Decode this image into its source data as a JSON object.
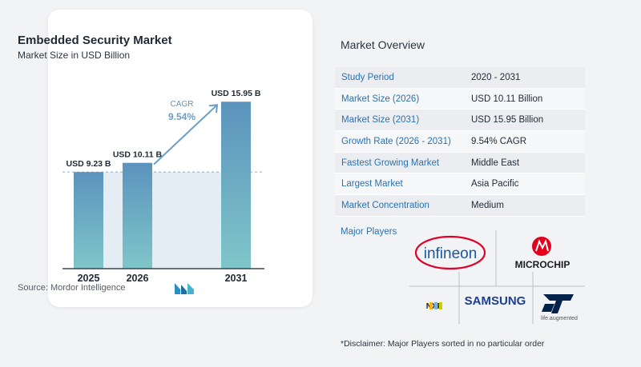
{
  "chart_data": {
    "type": "bar",
    "title": "Embedded Security Market",
    "subtitle": "Market Size in USD Billion",
    "categories": [
      "2025",
      "2026",
      "2031"
    ],
    "values": [
      9.23,
      10.11,
      15.95
    ],
    "value_labels": [
      "USD 9.23 B",
      "USD 10.11 B",
      "USD 15.95 B"
    ],
    "ylim": [
      0,
      16.5
    ],
    "annotation": {
      "label": "CAGR",
      "value": "9.54%"
    },
    "colors": {
      "bar_top": "#5b93bd",
      "bar_bottom": "#7fc6c9",
      "highlight": "#e4edf4",
      "arrow": "#6b9fc6"
    }
  },
  "source": "Source:  Mordor Intelligence",
  "overview": {
    "title": "Market Overview",
    "rows": [
      {
        "label": "Study Period",
        "value": "2020 - 2031"
      },
      {
        "label": "Market Size (2026)",
        "value": "USD 10.11 Billion"
      },
      {
        "label": "Market Size (2031)",
        "value": "USD 15.95 Billion"
      },
      {
        "label": "Growth Rate (2026 - 2031)",
        "value": "9.54% CAGR"
      },
      {
        "label": "Fastest Growing Market",
        "value": "Middle East"
      },
      {
        "label": "Largest Market",
        "value": "Asia Pacific"
      },
      {
        "label": "Market Concentration",
        "value": "Medium"
      }
    ]
  },
  "players": {
    "label": "Major Players",
    "logos": {
      "infineon": "infineon",
      "microchip": "MICROCHIP",
      "nxp": "NXP",
      "samsung": "SAMSUNG",
      "st_tagline": "life.augmented"
    }
  },
  "disclaimer": "*Disclaimer: Major Players sorted in no particular order"
}
